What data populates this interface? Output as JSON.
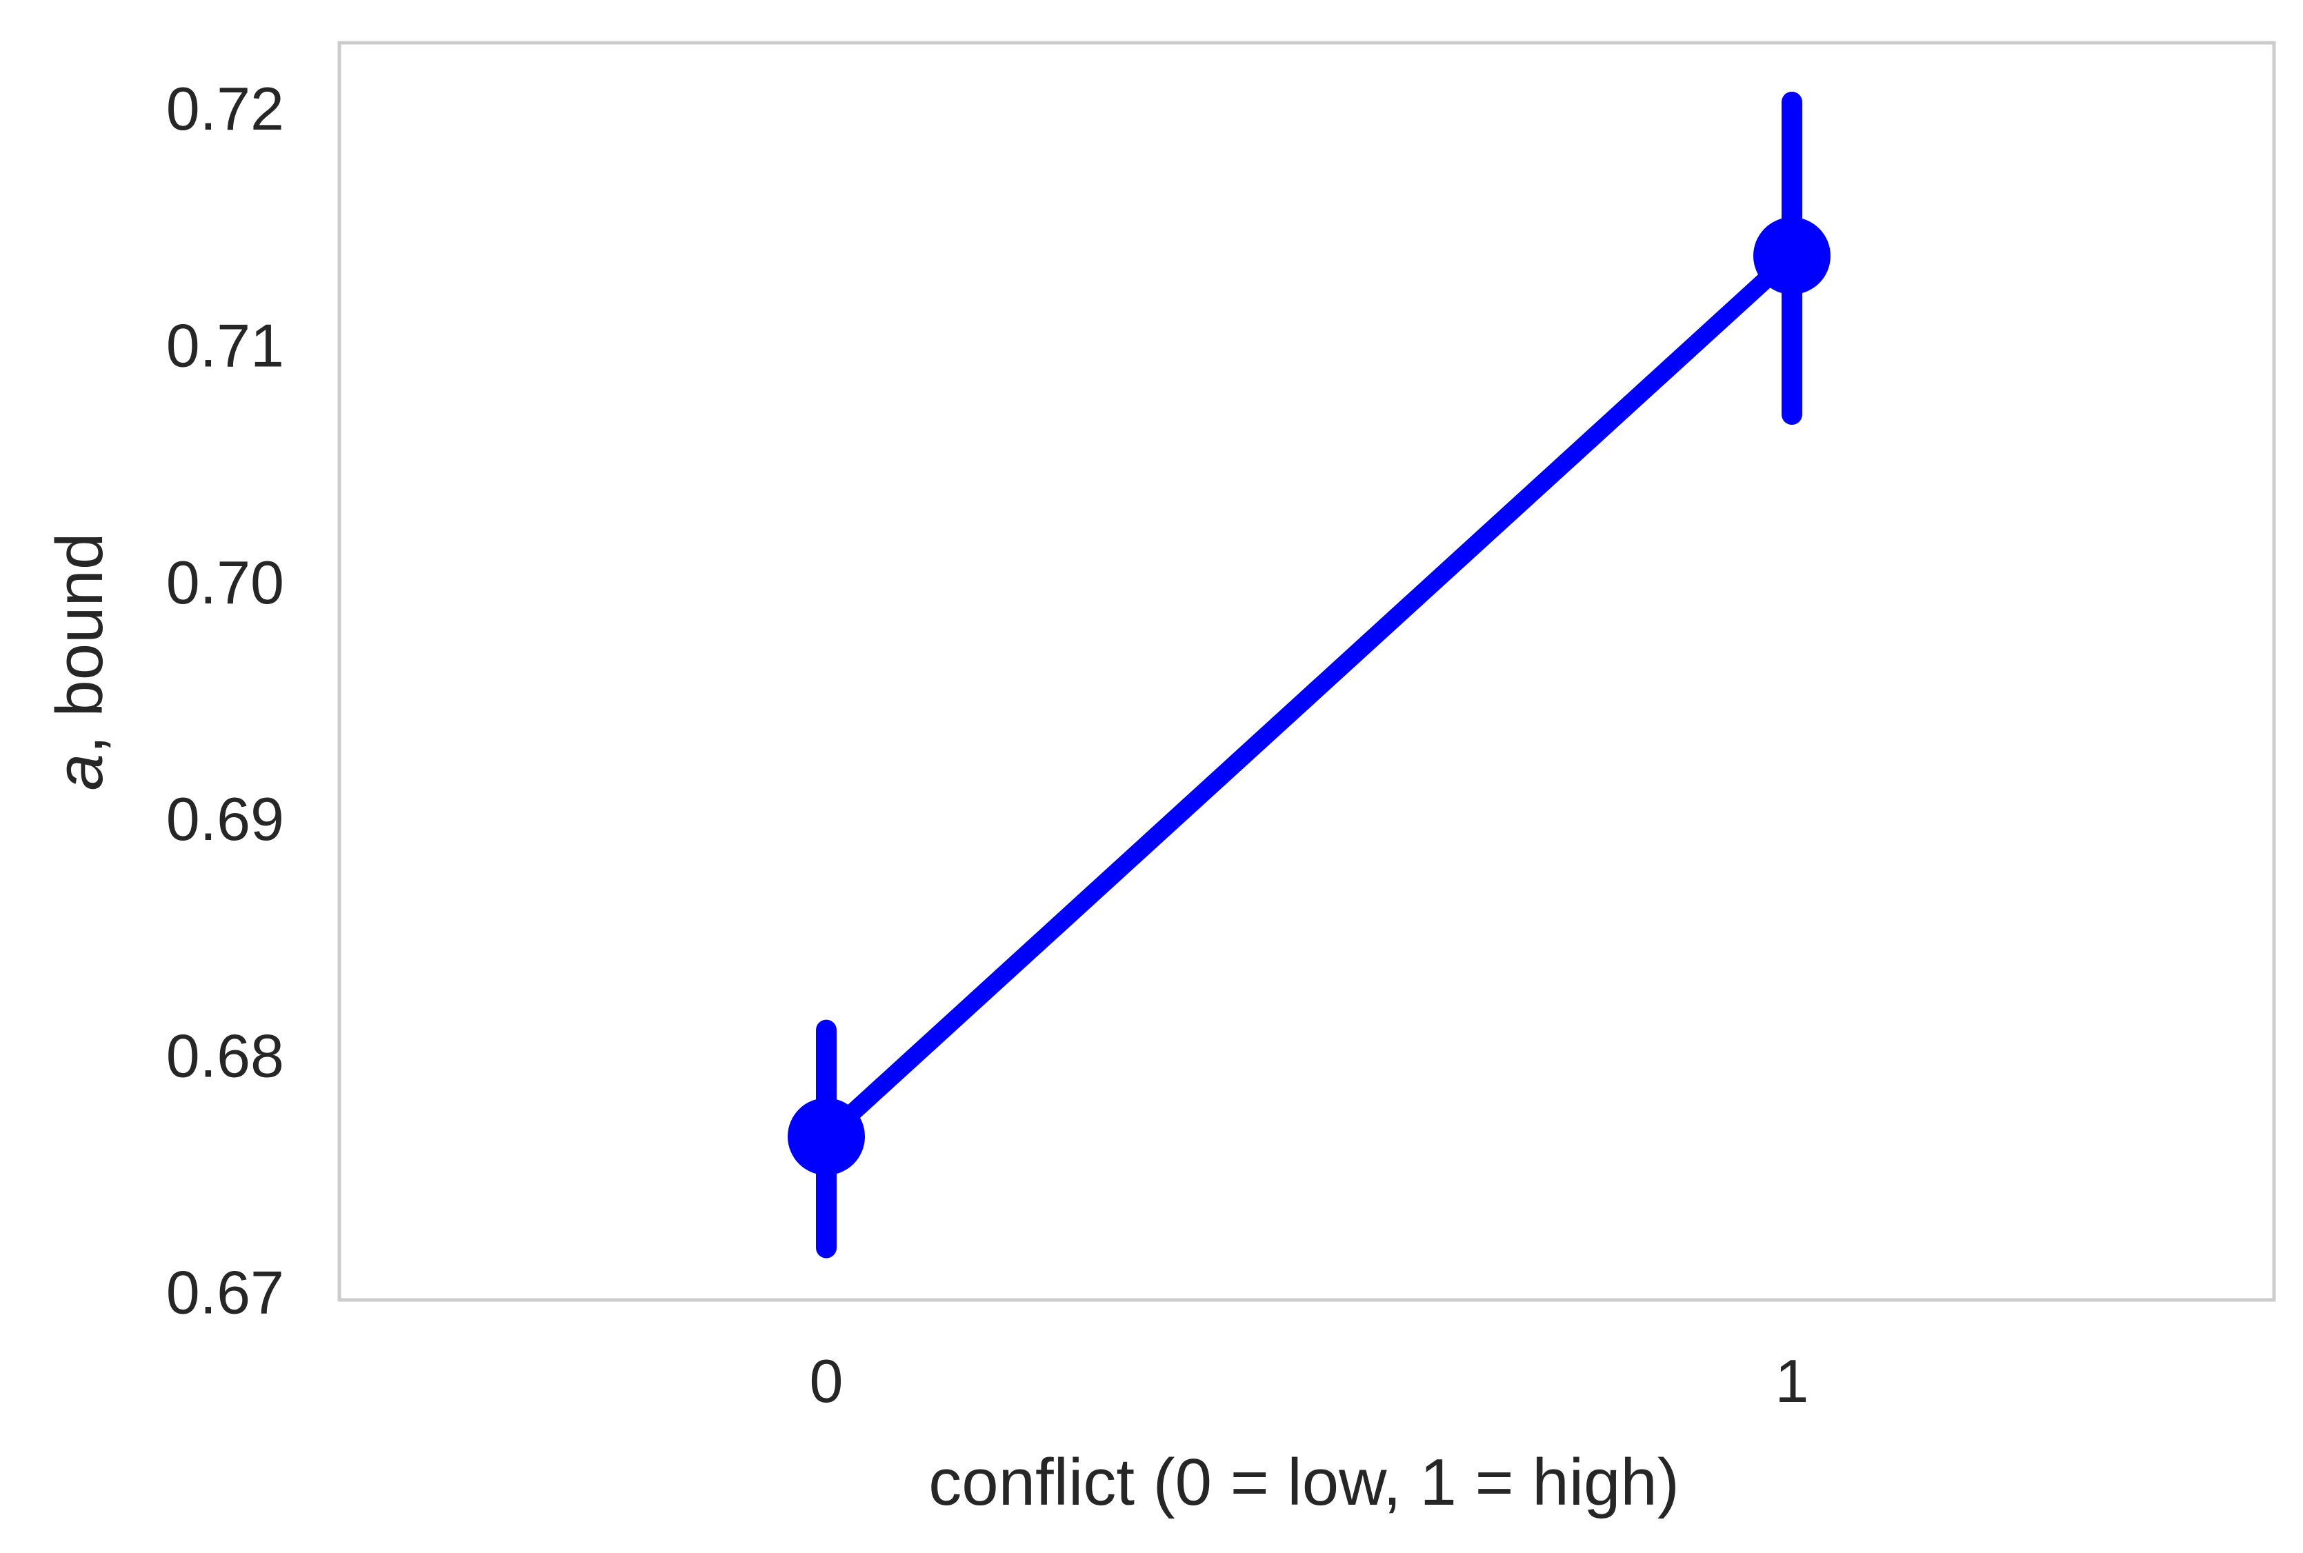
{
  "chart_data": {
    "type": "line",
    "categories": [
      "0",
      "1"
    ],
    "series": [
      {
        "values": [
          0.6766,
          0.7138
        ],
        "ci_low": [
          0.6719,
          0.7071
        ],
        "ci_high": [
          0.6811,
          0.7203
        ],
        "color": "#0000ff"
      }
    ],
    "xlabel": "conflict (0 = low, 1 = high)",
    "ylabel_italic": "a",
    "ylabel_rest": ", bound",
    "ylim": [
      0.6697,
      0.7228
    ],
    "yticks": [
      "0.67",
      "0.68",
      "0.69",
      "0.70",
      "0.71",
      "0.72"
    ],
    "grid": false,
    "frame_color": "#cccccc"
  }
}
